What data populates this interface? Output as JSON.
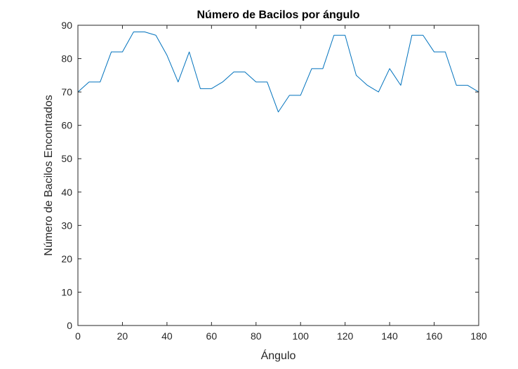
{
  "chart_data": {
    "type": "line",
    "title": "Número de Bacilos por ángulo",
    "xlabel": "Ángulo",
    "ylabel": "Número de Bacilos Encontrados",
    "xlim": [
      0,
      180
    ],
    "ylim": [
      0,
      90
    ],
    "xticks": [
      "0",
      "20",
      "40",
      "60",
      "80",
      "100",
      "120",
      "140",
      "160",
      "180"
    ],
    "yticks": [
      "0",
      "10",
      "20",
      "30",
      "40",
      "50",
      "60",
      "70",
      "80",
      "90"
    ],
    "grid": false,
    "box": true,
    "series": [
      {
        "color": "#0072BD",
        "x": [
          0,
          5,
          10,
          15,
          20,
          25,
          30,
          35,
          40,
          45,
          50,
          55,
          60,
          65,
          70,
          75,
          80,
          85,
          90,
          95,
          100,
          105,
          110,
          115,
          120,
          125,
          130,
          135,
          140,
          145,
          150,
          155,
          160,
          165,
          170,
          175,
          180
        ],
        "y": [
          70,
          73,
          73,
          82,
          82,
          88,
          88,
          87,
          81,
          73,
          82,
          71,
          71,
          73,
          76,
          76,
          73,
          73,
          64,
          69,
          69,
          77,
          77,
          87,
          87,
          75,
          72,
          70,
          77,
          72,
          87,
          87,
          82,
          82,
          72,
          72,
          70
        ]
      },
      {
        "color": "#D95319",
        "x": [
          0,
          180
        ],
        "y": [
          0,
          0
        ]
      }
    ]
  }
}
